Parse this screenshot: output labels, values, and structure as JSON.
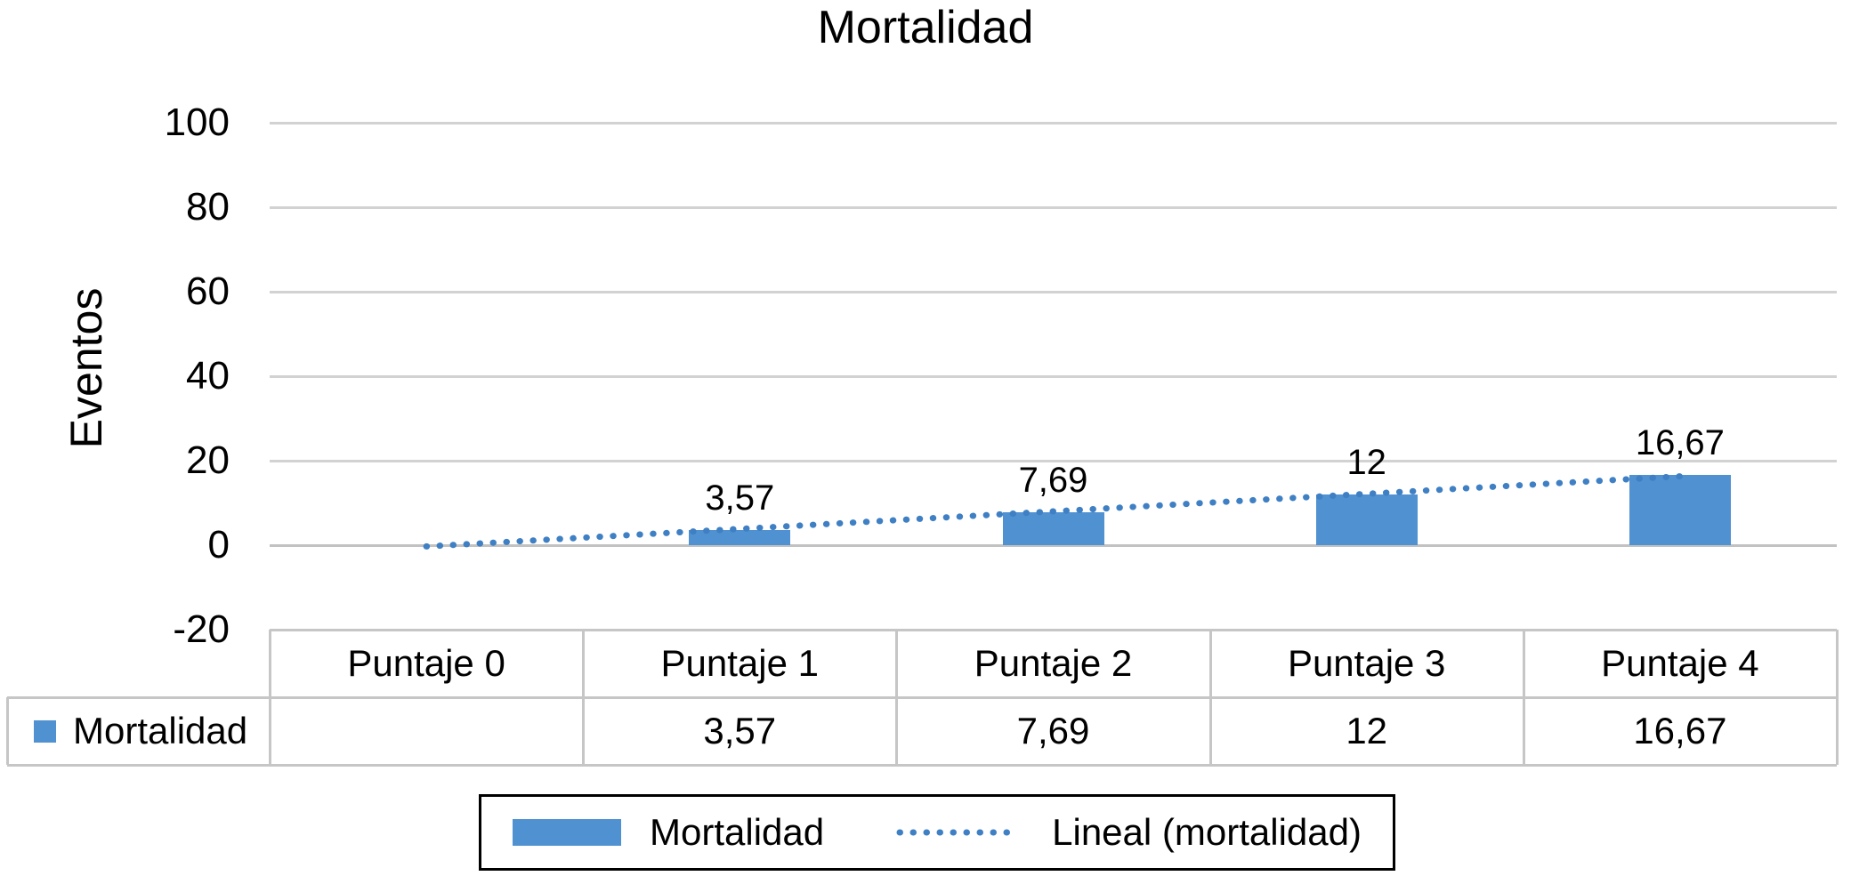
{
  "chart_data": {
    "type": "bar",
    "title": "Mortalidad",
    "ylabel": "Eventos",
    "xlabel": "",
    "categories": [
      "Puntaje 0",
      "Puntaje 1",
      "Puntaje 2",
      "Puntaje 3",
      "Puntaje 4"
    ],
    "series": [
      {
        "name": "Mortalidad",
        "values": [
          null,
          3.57,
          7.69,
          12,
          16.67
        ],
        "display_values": [
          "",
          "3,57",
          "7,69",
          "12",
          "16,67"
        ]
      }
    ],
    "ylim": [
      -20,
      100
    ],
    "y_ticks": [
      100,
      80,
      60,
      40,
      20,
      0,
      -20
    ],
    "y_tick_labels": [
      "100",
      "80",
      "60",
      "40",
      "20",
      "0",
      "-20"
    ],
    "gridline_values": [
      100,
      80,
      60,
      40,
      20
    ],
    "grid": "horizontal",
    "trendline": {
      "name": "Lineal (mortalidad)",
      "start_value": -0.3,
      "end_value": 16.3
    },
    "legend_position": "bottom",
    "data_table_shown": true
  },
  "legend": {
    "series_label": "Mortalidad",
    "trendline_label": "Lineal (mortalidad)"
  },
  "table": {
    "row_header": "Mortalidad"
  },
  "colors": {
    "bar_fill": "#5091D1",
    "trendline": "#3F80C4",
    "gridline": "#D2D2D2",
    "axis_line": "#C2C2C2",
    "table_border": "#C6C6C6",
    "legend_border": "#000000",
    "text": "#000000"
  }
}
